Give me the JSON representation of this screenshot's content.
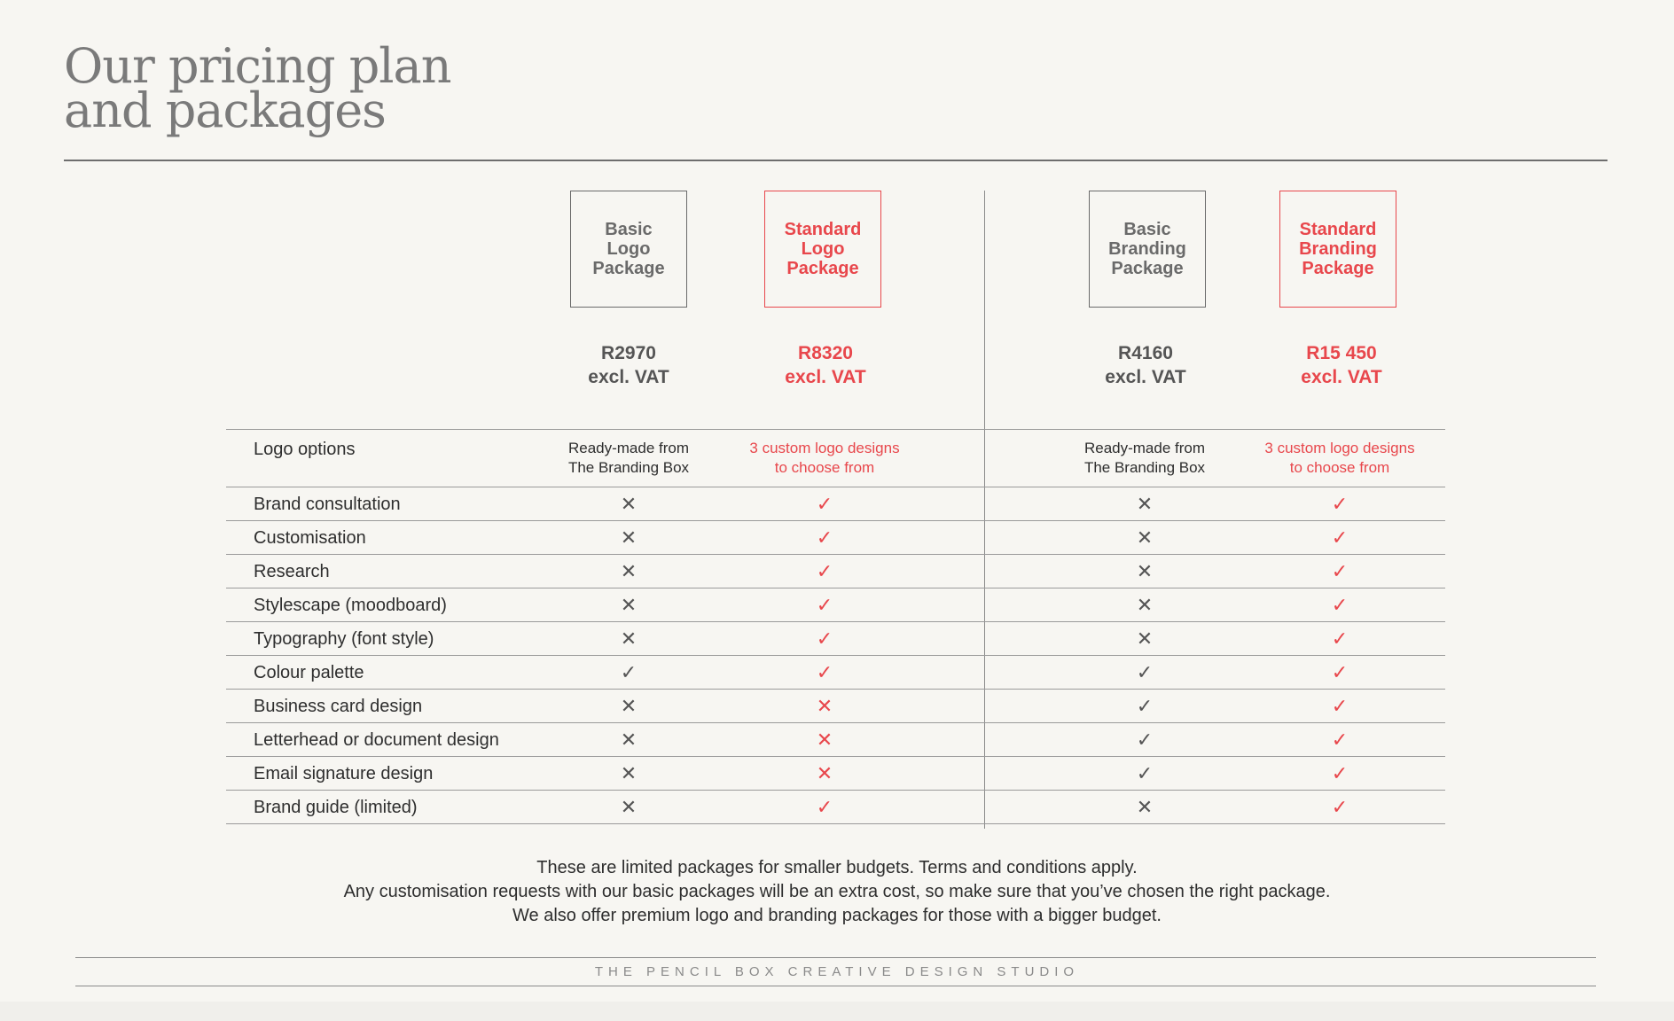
{
  "title": {
    "line1": "Our pricing plan",
    "line2": "and packages"
  },
  "packages": [
    {
      "name": "Basic\nLogo\nPackage",
      "price": "R2970",
      "vat": "excl. VAT"
    },
    {
      "name": "Standard\nLogo\nPackage",
      "price": "R8320",
      "vat": "excl. VAT"
    },
    {
      "name": "Basic\nBranding\nPackage",
      "price": "R4160",
      "vat": "excl. VAT"
    },
    {
      "name": "Standard\nBranding\nPackage",
      "price": "R15 450",
      "vat": "excl. VAT"
    }
  ],
  "logo_options": {
    "label": "Logo options",
    "values": [
      "Ready-made from\nThe Branding Box",
      "3 custom logo designs\nto choose from",
      "Ready-made from\nThe Branding Box",
      "3 custom logo designs\nto choose from"
    ]
  },
  "features": [
    {
      "label": "Brand consultation",
      "values": [
        "✕",
        "✓",
        "✕",
        "✓"
      ]
    },
    {
      "label": "Customisation",
      "values": [
        "✕",
        "✓",
        "✕",
        "✓"
      ]
    },
    {
      "label": "Research",
      "values": [
        "✕",
        "✓",
        "✕",
        "✓"
      ]
    },
    {
      "label": "Stylescape (moodboard)",
      "values": [
        "✕",
        "✓",
        "✕",
        "✓"
      ]
    },
    {
      "label": "Typography (font style)",
      "values": [
        "✕",
        "✓",
        "✕",
        "✓"
      ]
    },
    {
      "label": "Colour palette",
      "values": [
        "✓",
        "✓",
        "✓",
        "✓"
      ]
    },
    {
      "label": "Business card design",
      "values": [
        "✕",
        "✕",
        "✓",
        "✓"
      ]
    },
    {
      "label": "Letterhead or document design",
      "values": [
        "✕",
        "✕",
        "✓",
        "✓"
      ]
    },
    {
      "label": "Email signature design",
      "values": [
        "✕",
        "✕",
        "✓",
        "✓"
      ]
    },
    {
      "label": "Brand guide (limited)",
      "values": [
        "✕",
        "✓",
        "✕",
        "✓"
      ]
    }
  ],
  "notes": [
    "These are limited packages for smaller budgets. Terms and conditions apply.",
    "Any customisation requests with our basic packages will be an extra cost, so make sure that you’ve chosen the right package.",
    "We also offer premium logo and branding packages for those with a bigger budget."
  ],
  "footer": "THE PENCIL BOX CREATIVE DESIGN STUDIO",
  "colors": {
    "accent": "#e8474c",
    "muted": "#6a6a6a",
    "background": "#f7f6f2"
  }
}
